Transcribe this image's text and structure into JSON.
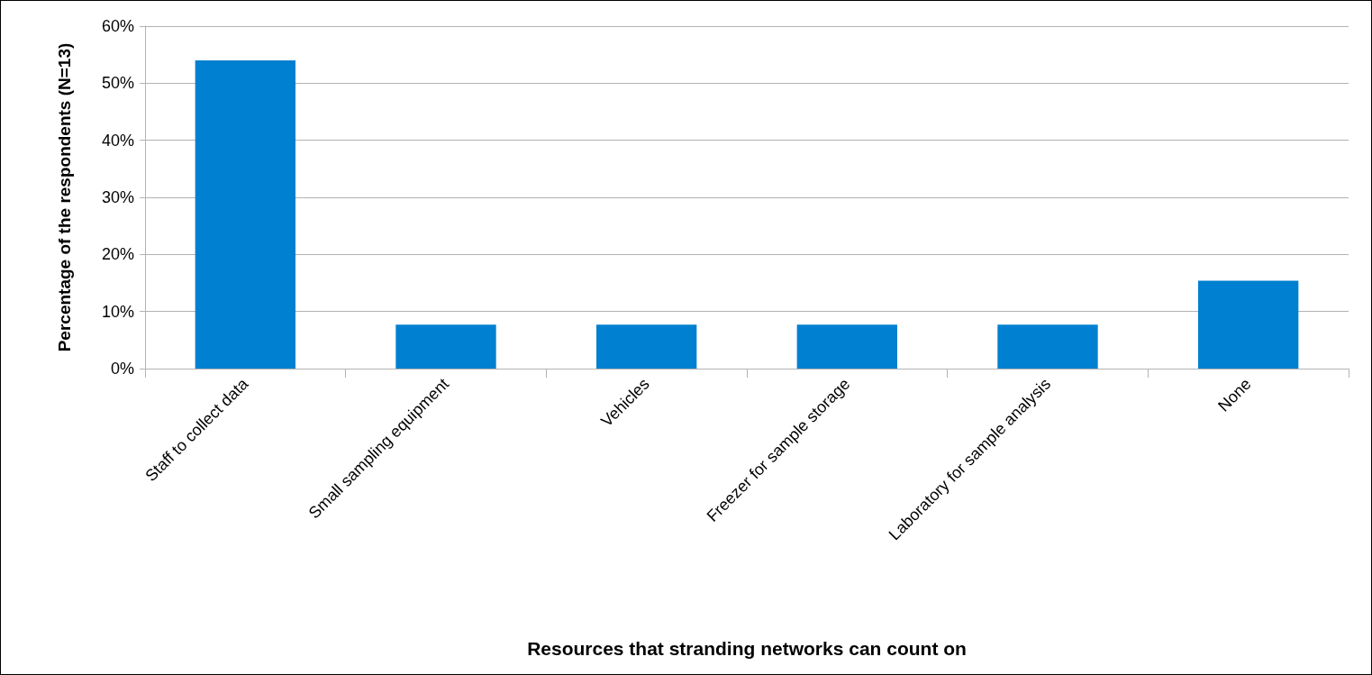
{
  "chart_data": {
    "type": "bar",
    "xlabel": "Resources that stranding networks can count on",
    "ylabel": "Percentage of the respondents (N=13)",
    "categories": [
      "Staff to collect data",
      "Small sampling equipment",
      "Vehicles",
      "Freezer for sample storage",
      "Laboratory for sample analysis",
      "None"
    ],
    "values": [
      54,
      7.7,
      7.7,
      7.7,
      7.7,
      15.4
    ],
    "color": "#0080d0",
    "ylim": [
      0,
      60
    ],
    "yticks": [
      {
        "value": 0,
        "label": "0%"
      },
      {
        "value": 10,
        "label": "10%"
      },
      {
        "value": 20,
        "label": "20%"
      },
      {
        "value": 30,
        "label": "30%"
      },
      {
        "value": 40,
        "label": "40%"
      },
      {
        "value": 50,
        "label": "50%"
      },
      {
        "value": 60,
        "label": "60%"
      }
    ],
    "grid": "y"
  }
}
